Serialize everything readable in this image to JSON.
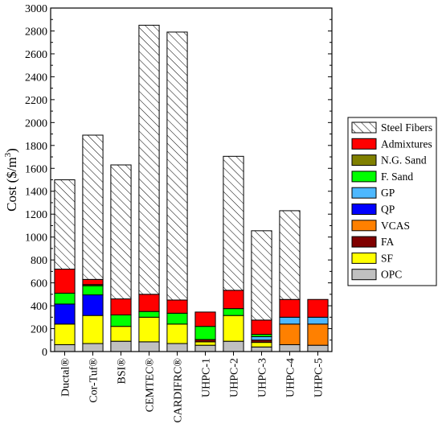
{
  "chart_data": {
    "type": "bar",
    "stacked": true,
    "ylabel": "Cost ($/m",
    "ylabel_superscript": "3",
    "ylabel_suffix": ")",
    "ylim": [
      0,
      3000
    ],
    "yticks": [
      0,
      200,
      400,
      600,
      800,
      1000,
      1200,
      1400,
      1600,
      1800,
      2000,
      2200,
      2400,
      2600,
      2800,
      3000
    ],
    "legend_position": "right",
    "categories": [
      "Ductal®",
      "Cor-Tuf®",
      "BSI®",
      "CEMTEC®",
      "CARDIFRC®",
      "UHPC-1",
      "UHPC-2",
      "UHPC-3",
      "UHPC-4",
      "UHPC-5"
    ],
    "series": [
      {
        "name": "OPC",
        "color": "#c0c0c0",
        "values": [
          60,
          70,
          90,
          85,
          70,
          55,
          90,
          40,
          60,
          55
        ]
      },
      {
        "name": "SF",
        "color": "#ffff00",
        "values": [
          180,
          245,
          130,
          215,
          170,
          30,
          225,
          40,
          0,
          0
        ]
      },
      {
        "name": "FA",
        "color": "#800000",
        "values": [
          0,
          0,
          0,
          0,
          0,
          20,
          0,
          20,
          0,
          0
        ]
      },
      {
        "name": "VCAS",
        "color": "#ff8000",
        "values": [
          0,
          0,
          0,
          0,
          0,
          0,
          0,
          0,
          180,
          185
        ]
      },
      {
        "name": "QP",
        "color": "#0000ff",
        "values": [
          175,
          180,
          0,
          0,
          0,
          0,
          0,
          0,
          0,
          0
        ]
      },
      {
        "name": "GP",
        "color": "#4db8ff",
        "values": [
          0,
          0,
          0,
          0,
          0,
          0,
          0,
          30,
          60,
          60
        ]
      },
      {
        "name": "F. Sand",
        "color": "#00ff00",
        "values": [
          95,
          80,
          100,
          50,
          95,
          115,
          60,
          20,
          0,
          0
        ]
      },
      {
        "name": "N.G. Sand",
        "color": "#808000",
        "values": [
          0,
          10,
          0,
          0,
          0,
          0,
          0,
          0,
          0,
          0
        ]
      },
      {
        "name": "Admixtures",
        "color": "#ff0000",
        "values": [
          210,
          45,
          140,
          150,
          115,
          125,
          160,
          125,
          155,
          155
        ]
      },
      {
        "name": "Steel Fibers",
        "color": "hatch",
        "values": [
          780,
          1260,
          1170,
          2350,
          2340,
          0,
          1170,
          780,
          775,
          0
        ]
      }
    ]
  }
}
